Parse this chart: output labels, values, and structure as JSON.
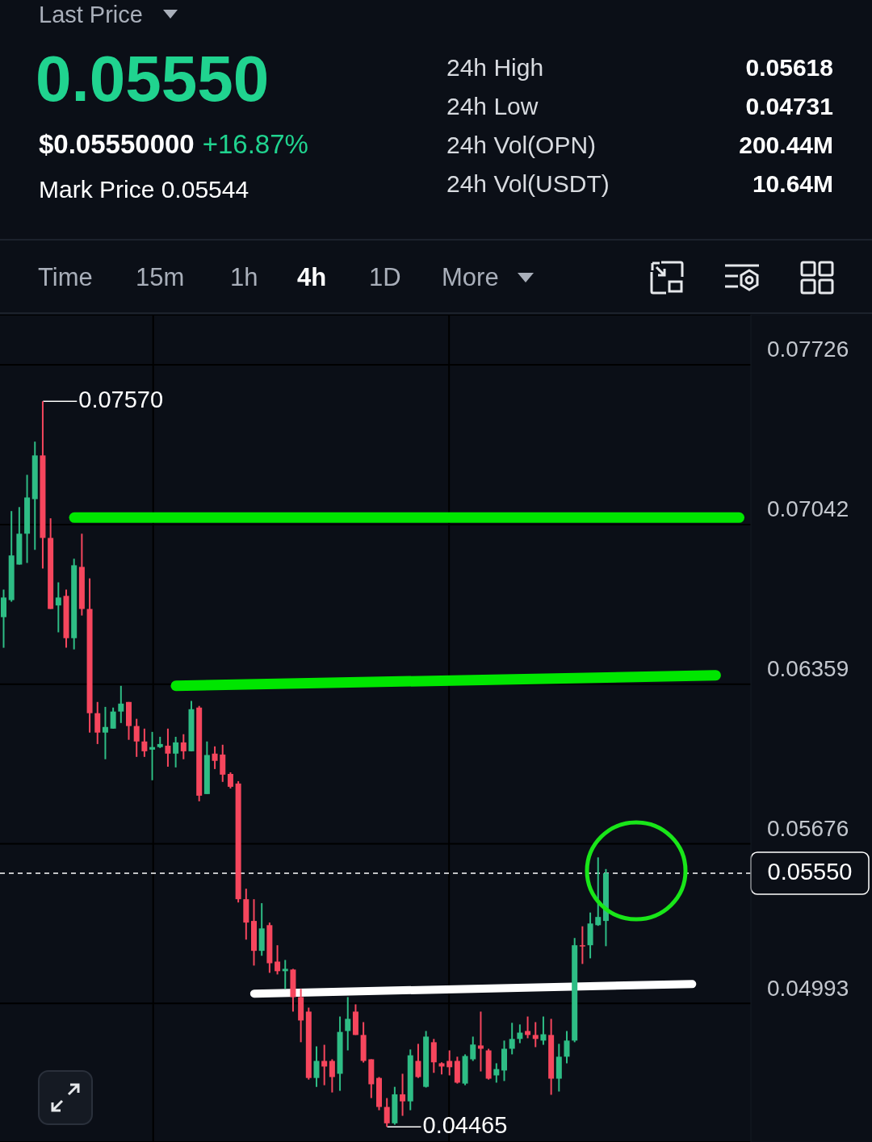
{
  "chart_data": {
    "type": "candlestick",
    "annotations": [
      "Last Price",
      "0.05550",
      "$0.05550000",
      "+16.87%",
      "Mark Price 0.05544",
      "24h High",
      "0.05618",
      "24h Low",
      "0.04731",
      "24h Vol(OPN)",
      "200.44M",
      "24h Vol(USDT)",
      "10.64M",
      "Time",
      "15m",
      "1h",
      "4h",
      "1D",
      "More",
      "0.07570",
      "0.04465"
    ],
    "categories": [
      null,
      null,
      null,
      null,
      null,
      null,
      null,
      null,
      null,
      null,
      null,
      null,
      null,
      null,
      null,
      null,
      null,
      null,
      null,
      null,
      null,
      null,
      null,
      null,
      null,
      null,
      null,
      null,
      null,
      null,
      null,
      null,
      null,
      null,
      null,
      null,
      null,
      null,
      null,
      null,
      null,
      null,
      null,
      null,
      null,
      null,
      null,
      null,
      null,
      null,
      null,
      null,
      null,
      null,
      null,
      null,
      null,
      null,
      null,
      null,
      null,
      null,
      null,
      null,
      null,
      null,
      null,
      null,
      null,
      null,
      null,
      null,
      null,
      null,
      null,
      null,
      null,
      null,
      null,
      null,
      null,
      null,
      null,
      null,
      null,
      null,
      null,
      null,
      null,
      null,
      null,
      null,
      null,
      null,
      null,
      null
    ],
    "ohlc": [
      [
        0.06646,
        0.06764,
        0.06515,
        0.0673
      ],
      [
        0.06719,
        0.071,
        0.06712,
        0.0691
      ],
      [
        0.06871,
        0.07117,
        0.06871,
        0.07003
      ],
      [
        0.07003,
        0.07255,
        0.06878,
        0.07158
      ],
      [
        0.07151,
        0.07397,
        0.06934,
        0.07338
      ],
      [
        0.07338,
        0.0757,
        0.06854,
        0.06985
      ],
      [
        0.06985,
        0.07069,
        0.06681,
        0.06681
      ],
      [
        0.06696,
        0.06795,
        0.06581,
        0.0673
      ],
      [
        0.06737,
        0.06764,
        0.06515,
        0.06556
      ],
      [
        0.06556,
        0.06896,
        0.06508,
        0.06868
      ],
      [
        0.06861,
        0.07003,
        0.06653,
        0.06681
      ],
      [
        0.06681,
        0.06812,
        0.06152,
        0.06235
      ],
      [
        0.06235,
        0.06283,
        0.06103,
        0.06152
      ],
      [
        0.06152,
        0.06262,
        0.06038,
        0.06176
      ],
      [
        0.06169,
        0.06259,
        0.06169,
        0.06242
      ],
      [
        0.06242,
        0.06352,
        0.06193,
        0.06276
      ],
      [
        0.06283,
        0.06283,
        0.06121,
        0.0618
      ],
      [
        0.0618,
        0.06211,
        0.06048,
        0.06114
      ],
      [
        0.06114,
        0.06169,
        0.06048,
        0.06072
      ],
      [
        0.06079,
        0.06155,
        0.05948,
        0.0609
      ],
      [
        0.0609,
        0.06134,
        0.06086,
        0.06103
      ],
      [
        0.06096,
        0.06169,
        0.06006,
        0.06062
      ],
      [
        0.06062,
        0.06134,
        0.06003,
        0.0611
      ],
      [
        0.0611,
        0.06145,
        0.06038,
        0.06072
      ],
      [
        0.06072,
        0.06287,
        0.06072,
        0.06252
      ],
      [
        0.06259,
        0.06266,
        0.05858,
        0.05882
      ],
      [
        0.05889,
        0.06114,
        0.05889,
        0.06056
      ],
      [
        0.06062,
        0.06093,
        0.05996,
        0.06031
      ],
      [
        0.06058,
        0.061,
        0.05941,
        0.05972
      ],
      [
        0.05975,
        0.05982,
        0.05913,
        0.0592
      ],
      [
        0.05934,
        0.05944,
        0.05425,
        0.05439
      ],
      [
        0.05439,
        0.05484,
        0.05266,
        0.05339
      ],
      [
        0.05346,
        0.05439,
        0.05155,
        0.05218
      ],
      [
        0.05218,
        0.05422,
        0.05197,
        0.05314
      ],
      [
        0.05328,
        0.05339,
        0.05124,
        0.05165
      ],
      [
        0.05172,
        0.05242,
        0.05117,
        0.05131
      ],
      [
        0.05131,
        0.05179,
        0.05055,
        0.05141
      ],
      [
        0.05138,
        0.05141,
        0.04958,
        0.0502
      ],
      [
        0.0502,
        0.05055,
        0.04827,
        0.0492
      ],
      [
        0.04958,
        0.04975,
        0.04667,
        0.04674
      ],
      [
        0.04674,
        0.04809,
        0.04636,
        0.04747
      ],
      [
        0.04747,
        0.04816,
        0.04643,
        0.04723
      ],
      [
        0.04747,
        0.04754,
        0.04612,
        0.04678
      ],
      [
        0.04692,
        0.04937,
        0.04619,
        0.04871
      ],
      [
        0.04875,
        0.0502,
        0.04792,
        0.04927
      ],
      [
        0.04958,
        0.04989,
        0.04858,
        0.04858
      ],
      [
        0.04858,
        0.04913,
        0.0474,
        0.04747
      ],
      [
        0.04754,
        0.04754,
        0.04588,
        0.04647
      ],
      [
        0.04674,
        0.04678,
        0.04536,
        0.0455
      ],
      [
        0.0455,
        0.04588,
        0.04465,
        0.0448
      ],
      [
        0.0448,
        0.04636,
        0.04474,
        0.04604
      ],
      [
        0.04604,
        0.04692,
        0.04512,
        0.04574
      ],
      [
        0.04574,
        0.04796,
        0.04536,
        0.04771
      ],
      [
        0.04747,
        0.0482,
        0.04674,
        0.04678
      ],
      [
        0.04636,
        0.04875,
        0.04633,
        0.04851
      ],
      [
        0.04827,
        0.04841,
        0.04696,
        0.04741
      ],
      [
        0.04737,
        0.04741,
        0.04689,
        0.04723
      ],
      [
        0.04747,
        0.04792,
        0.04685,
        0.0472
      ],
      [
        0.04747,
        0.04765,
        0.0465,
        0.04654
      ],
      [
        0.0465,
        0.04775,
        0.04643,
        0.04768
      ],
      [
        0.04754,
        0.04851,
        0.04747,
        0.04817
      ],
      [
        0.04813,
        0.04958,
        0.04702,
        0.04799
      ],
      [
        0.04792,
        0.04799,
        0.04667,
        0.04671
      ],
      [
        0.04685,
        0.04737,
        0.04654,
        0.04712
      ],
      [
        0.04706,
        0.04834,
        0.04661,
        0.04799
      ],
      [
        0.04799,
        0.0491,
        0.04775,
        0.04841
      ],
      [
        0.04841,
        0.04903,
        0.04823,
        0.04868
      ],
      [
        0.04875,
        0.04937,
        0.04844,
        0.04858
      ],
      [
        0.04858,
        0.04913,
        0.04806,
        0.04841
      ],
      [
        0.04834,
        0.04937,
        0.04816,
        0.04861
      ],
      [
        0.04858,
        0.04927,
        0.04602,
        0.04671
      ],
      [
        0.04671,
        0.0482,
        0.04616,
        0.04765
      ],
      [
        0.04765,
        0.04875,
        0.04737,
        0.04834
      ],
      [
        0.04834,
        0.05273,
        0.04827,
        0.05242
      ],
      [
        0.05242,
        0.05323,
        0.05162,
        0.05238
      ],
      [
        0.05242,
        0.05382,
        0.05186,
        0.05335
      ],
      [
        0.05328,
        0.05618,
        0.05325,
        0.05363
      ],
      [
        0.05346,
        0.05568,
        0.05238,
        0.0555
      ],
      null,
      null,
      null,
      null,
      null,
      null,
      null,
      null,
      null,
      null,
      null,
      null,
      null,
      null,
      null,
      null,
      null,
      null
    ],
    "series": [
      {
        "type": "line",
        "color": "#00e600",
        "values": [
          null,
          null,
          null,
          null,
          null,
          null,
          null,
          null,
          null,
          0.07072,
          null,
          null,
          null,
          null,
          null,
          null,
          null,
          null,
          null,
          null,
          null,
          null,
          null,
          null,
          null,
          null,
          null,
          null,
          null,
          null,
          null,
          null,
          null,
          null,
          null,
          null,
          null,
          null,
          null,
          null,
          null,
          null,
          null,
          null,
          null,
          null,
          null,
          null,
          null,
          null,
          null,
          null,
          null,
          null,
          null,
          null,
          null,
          null,
          null,
          null,
          null,
          null,
          null,
          null,
          null,
          null,
          null,
          null,
          null,
          null,
          null,
          null,
          null,
          null,
          null,
          null,
          null,
          null,
          null,
          null,
          null,
          null,
          null,
          null,
          null,
          null,
          null,
          null,
          null,
          null,
          null,
          null,
          null,
          null,
          0.07072,
          null
        ]
      },
      {
        "type": "line",
        "color": "#00e600",
        "values": [
          null,
          null,
          null,
          null,
          null,
          null,
          null,
          null,
          null,
          null,
          null,
          null,
          null,
          null,
          null,
          null,
          null,
          null,
          null,
          null,
          null,
          null,
          0.06352,
          null,
          null,
          null,
          null,
          null,
          null,
          null,
          null,
          null,
          null,
          null,
          null,
          null,
          null,
          null,
          null,
          null,
          null,
          null,
          null,
          null,
          null,
          null,
          null,
          null,
          null,
          null,
          null,
          null,
          null,
          null,
          null,
          null,
          null,
          null,
          null,
          null,
          null,
          null,
          null,
          null,
          null,
          null,
          null,
          null,
          null,
          null,
          null,
          null,
          null,
          null,
          null,
          null,
          null,
          null,
          null,
          null,
          null,
          null,
          null,
          null,
          null,
          null,
          null,
          null,
          null,
          null,
          null,
          0.06397,
          null,
          null,
          null,
          null
        ]
      },
      {
        "type": "line",
        "color": "#ffffff",
        "values": [
          null,
          null,
          null,
          null,
          null,
          null,
          null,
          null,
          null,
          null,
          null,
          null,
          null,
          null,
          null,
          null,
          null,
          null,
          null,
          null,
          null,
          null,
          null,
          null,
          null,
          null,
          null,
          null,
          null,
          null,
          null,
          null,
          0.05035,
          null,
          null,
          null,
          null,
          null,
          null,
          null,
          null,
          null,
          null,
          null,
          null,
          null,
          null,
          null,
          null,
          null,
          null,
          null,
          null,
          null,
          null,
          null,
          null,
          null,
          null,
          null,
          null,
          null,
          null,
          null,
          null,
          null,
          null,
          null,
          null,
          null,
          null,
          null,
          null,
          null,
          null,
          null,
          null,
          null,
          null,
          null,
          null,
          null,
          null,
          null,
          null,
          null,
          null,
          null,
          0.05076,
          null,
          null,
          null,
          null,
          null,
          null,
          null
        ]
      }
    ],
    "ref_lines": [
      {
        "axis": "y",
        "value": 0.0555,
        "label": "0.05550",
        "color": "#ffffff",
        "line_style": "dashed"
      }
    ],
    "ylim": [
      0.044,
      0.0794
    ],
    "yticks": [
      0.07726,
      0.07042,
      0.06359,
      0.05676,
      0.04993
    ],
    "tick_labels": "y",
    "grid": true
  }
}
